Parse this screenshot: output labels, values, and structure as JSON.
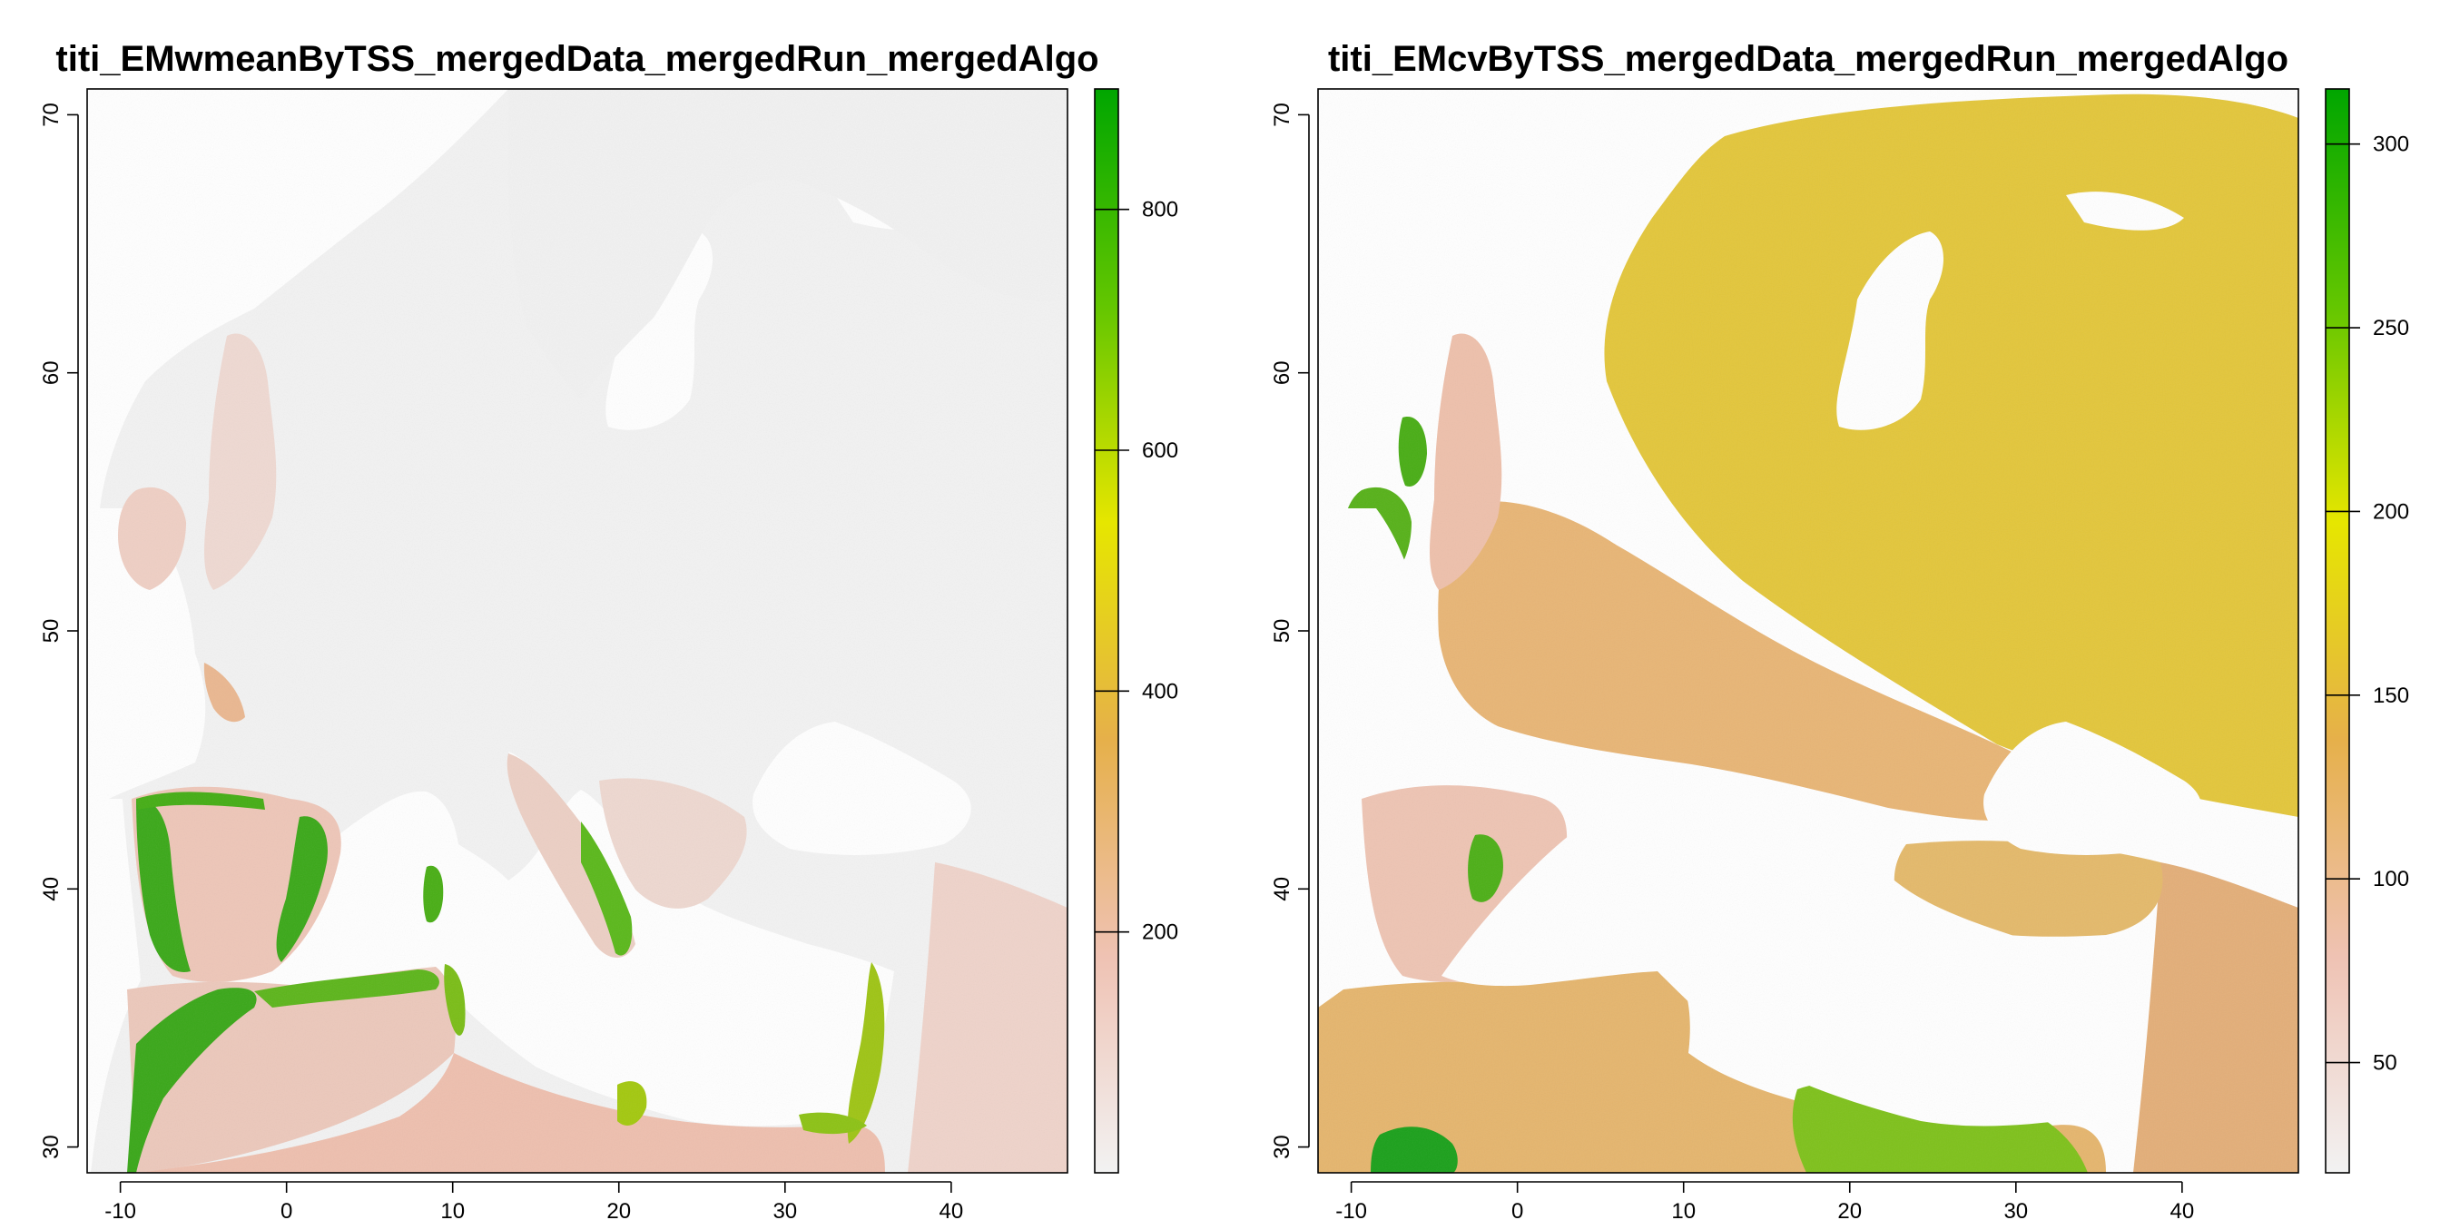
{
  "chart_data": [
    {
      "type": "heatmap",
      "title": "titi_EMwmeanByTSS_mergedData_mergedRun_mergedAlgo",
      "xlabel": "",
      "ylabel": "",
      "xlim": [
        -12,
        47
      ],
      "ylim": [
        29,
        71
      ],
      "x_ticks": [
        -10,
        0,
        10,
        20,
        30,
        40
      ],
      "y_ticks": [
        30,
        40,
        50,
        60,
        70
      ],
      "legend": {
        "position": "right",
        "range": [
          0,
          900
        ],
        "ticks": [
          200,
          400,
          600,
          800
        ],
        "colors": [
          "#f2f2f2",
          "#efc2b3",
          "#e6b04a",
          "#e6e600",
          "#63c600",
          "#00a600"
        ]
      },
      "colors": {
        "low": "#f2f2f2",
        "light_pink": "#efd7d0",
        "pink": "#edc0b0",
        "green": "#3cae14"
      }
    },
    {
      "type": "heatmap",
      "title": "titi_EMcvByTSS_mergedData_mergedRun_mergedAlgo",
      "xlabel": "",
      "ylabel": "",
      "xlim": [
        -12,
        47
      ],
      "ylim": [
        29,
        71
      ],
      "x_ticks": [
        -10,
        0,
        10,
        20,
        30,
        40
      ],
      "y_ticks": [
        30,
        40,
        50,
        60,
        70
      ],
      "legend": {
        "position": "right",
        "range": [
          20,
          315
        ],
        "ticks": [
          50,
          100,
          150,
          200,
          250,
          300
        ],
        "colors": [
          "#f2f2f2",
          "#efc2b3",
          "#e6b04a",
          "#e6e600",
          "#63c600",
          "#00a600"
        ]
      },
      "colors": {
        "base": "#e6b872",
        "north": "#e3c63a",
        "light": "#eec5b2",
        "green": "#48b018"
      }
    }
  ]
}
